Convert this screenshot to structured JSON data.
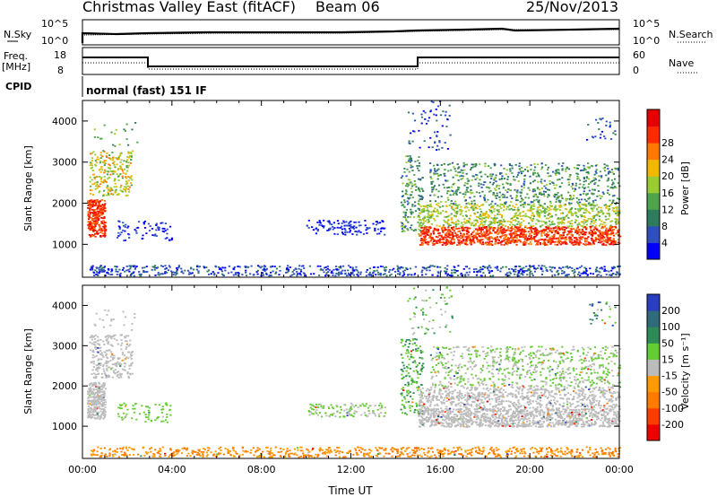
{
  "header": {
    "title": "Christmas Valley East (fitACF)",
    "beam": "Beam 06",
    "date": "25/Nov/2013"
  },
  "noise_panel": {
    "left_label": "N.Sky",
    "right_label": "N.Search",
    "left_ticks": [
      "10^5",
      "10^0"
    ],
    "right_ticks": [
      "10^5",
      "10^0"
    ]
  },
  "freq_panel": {
    "left_label_1": "Freq.",
    "left_label_2": "[MHz]",
    "right_label": "Nave",
    "left_ticks": [
      "18",
      "8"
    ],
    "right_ticks": [
      "60",
      "0"
    ]
  },
  "cpid": {
    "label": "CPID",
    "value": "normal (fast) 151 IF"
  },
  "chart_data": [
    {
      "type": "heatmap",
      "name": "power",
      "ylabel": "Slant Range [km]",
      "yticks": [
        "1000",
        "2000",
        "3000",
        "4000"
      ],
      "ylim": [
        200,
        4500
      ],
      "xlim": [
        0,
        24
      ],
      "colorbar_label": "Power [dB]",
      "colorbar_ticks": [
        "4",
        "8",
        "12",
        "16",
        "20",
        "24",
        "28"
      ],
      "colorbar_colors": [
        "#0000ff",
        "#2f4fbf",
        "#2e7b5e",
        "#4fa34a",
        "#99cc33",
        "#f2b800",
        "#ff7800",
        "#ff2a00",
        "#e60000"
      ]
    },
    {
      "type": "heatmap",
      "name": "velocity",
      "ylabel": "Slant Range [km]",
      "yticks": [
        "1000",
        "2000",
        "3000",
        "4000"
      ],
      "ylim": [
        200,
        4500
      ],
      "xlim": [
        0,
        24
      ],
      "xlabel": "Time UT",
      "xticks": [
        "00:00",
        "04:00",
        "08:00",
        "12:00",
        "16:00",
        "20:00",
        "00:00"
      ],
      "colorbar_label": "Velocity [m s⁻¹]",
      "colorbar_ticks": [
        "200",
        "100",
        "50",
        "15",
        "-15",
        "-50",
        "-100",
        "-200"
      ],
      "colorbar_colors": [
        "#2a3fbf",
        "#2f6b7a",
        "#2e8b57",
        "#66cc33",
        "#bcbcbc",
        "#ff9a00",
        "#ff7a00",
        "#ff3c00",
        "#ee0000"
      ]
    }
  ]
}
